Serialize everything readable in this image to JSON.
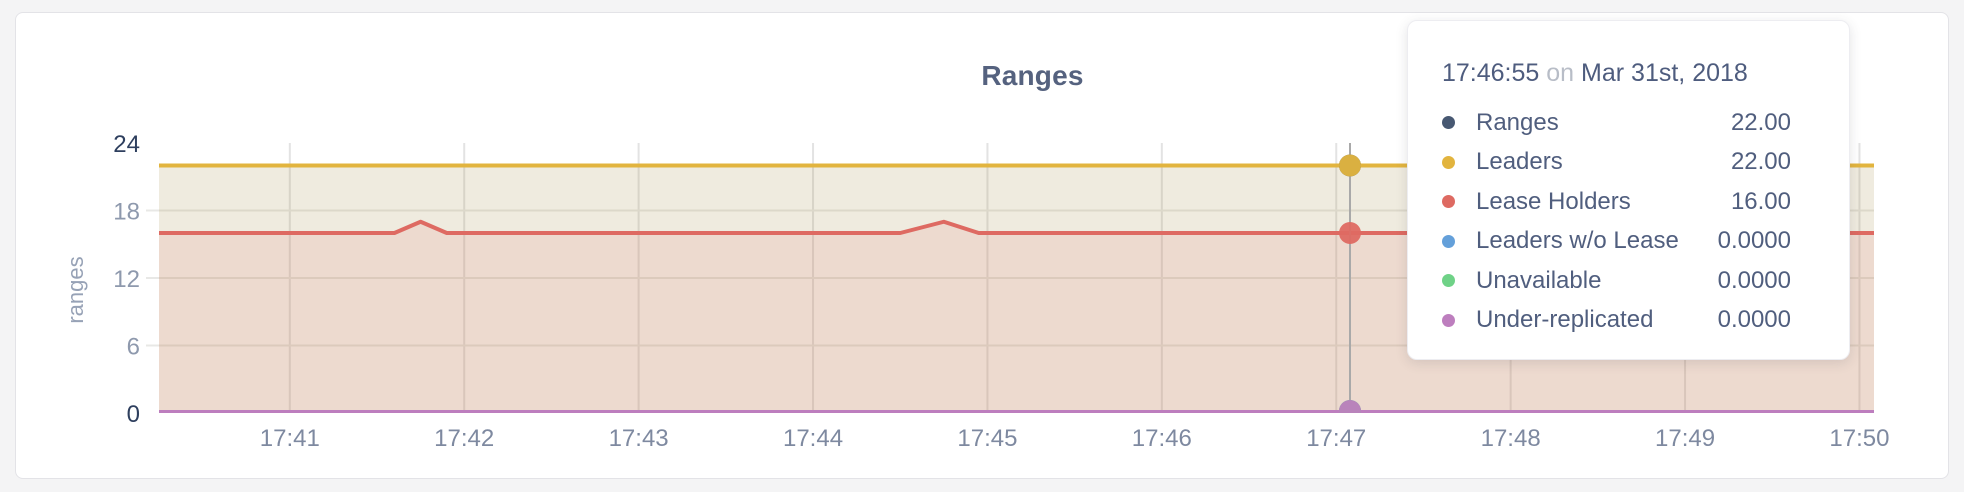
{
  "tooltip": {
    "time": "17:46:55",
    "separator": "on",
    "date": "Mar 31st, 2018",
    "values": [
      "22.00",
      "22.00",
      "16.00",
      "0.0000",
      "0.0000",
      "0.0000"
    ]
  },
  "chart_data": {
    "type": "area",
    "title": "Ranges",
    "xlabel": "",
    "ylabel": "ranges",
    "ylim": [
      0,
      24
    ],
    "yticks": [
      0,
      6,
      12,
      18,
      24
    ],
    "xticks": [
      "17:41",
      "17:42",
      "17:43",
      "17:44",
      "17:45",
      "17:46",
      "17:47",
      "17:48",
      "17:49",
      "17:50"
    ],
    "x_domain": [
      "17:40:15",
      "17:50:05"
    ],
    "grid": true,
    "legend_position": "tooltip",
    "hover_time": "17:46:55",
    "series": [
      {
        "name": "Ranges",
        "color": "#475872",
        "fill_opacity": 0.07,
        "points": [
          [
            "17:40:15",
            22
          ],
          [
            "17:50:05",
            22
          ]
        ]
      },
      {
        "name": "Leaders",
        "color": "#E2B43E",
        "fill_opacity": 0.12,
        "points": [
          [
            "17:40:15",
            22
          ],
          [
            "17:50:05",
            22
          ]
        ]
      },
      {
        "name": "Lease Holders",
        "color": "#DE6A62",
        "fill_opacity": 0.13,
        "points": [
          [
            "17:40:15",
            16
          ],
          [
            "17:41:36",
            16
          ],
          [
            "17:41:45",
            17
          ],
          [
            "17:41:54",
            16
          ],
          [
            "17:44:30",
            16
          ],
          [
            "17:44:45",
            17
          ],
          [
            "17:44:57",
            16
          ],
          [
            "17:50:05",
            16
          ]
        ]
      },
      {
        "name": "Leaders w/o Lease",
        "color": "#64A0DA",
        "fill_opacity": 0.12,
        "points": [
          [
            "17:40:15",
            0
          ],
          [
            "17:50:05",
            0
          ]
        ]
      },
      {
        "name": "Unavailable",
        "color": "#6FD287",
        "fill_opacity": 0.12,
        "points": [
          [
            "17:40:15",
            0
          ],
          [
            "17:50:05",
            0
          ]
        ]
      },
      {
        "name": "Under-replicated",
        "color": "#BD7EBE",
        "fill_opacity": 0.12,
        "points": [
          [
            "17:40:15",
            0
          ],
          [
            "17:50:05",
            0
          ]
        ]
      }
    ]
  }
}
